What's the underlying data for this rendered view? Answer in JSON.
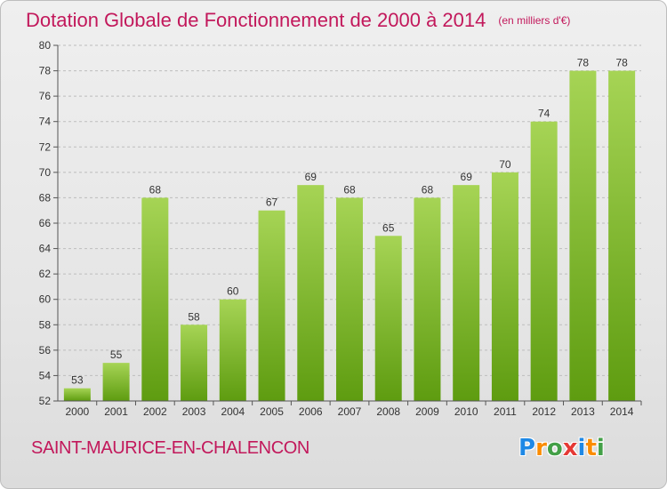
{
  "header": {
    "title": "Dotation Globale de Fonctionnement de 2000 à 2014",
    "unit": "(en milliers d'€)"
  },
  "commune": "SAINT-MAURICE-EN-CHALENCON",
  "logo": {
    "text": "Proxiti",
    "letter_colors": [
      "#1e88e5",
      "#fb8c00",
      "#43a047",
      "#e53935",
      "#1e88e5",
      "#fb8c00",
      "#43a047"
    ]
  },
  "colors": {
    "title": "#c2185b",
    "bar_top": "#a6d455",
    "bar_bottom": "#5e9c10",
    "grid": "#bdbdbd"
  },
  "chart_data": {
    "type": "bar",
    "categories": [
      "2000",
      "2001",
      "2002",
      "2003",
      "2004",
      "2005",
      "2006",
      "2007",
      "2008",
      "2009",
      "2010",
      "2011",
      "2012",
      "2013",
      "2014"
    ],
    "values": [
      53,
      55,
      68,
      58,
      60,
      67,
      69,
      68,
      65,
      68,
      69,
      70,
      74,
      78,
      78
    ],
    "ylim": [
      52,
      80
    ],
    "yticks": [
      52,
      54,
      56,
      58,
      60,
      62,
      64,
      66,
      68,
      70,
      72,
      74,
      76,
      78,
      80
    ],
    "grid": true,
    "legend": "none"
  }
}
